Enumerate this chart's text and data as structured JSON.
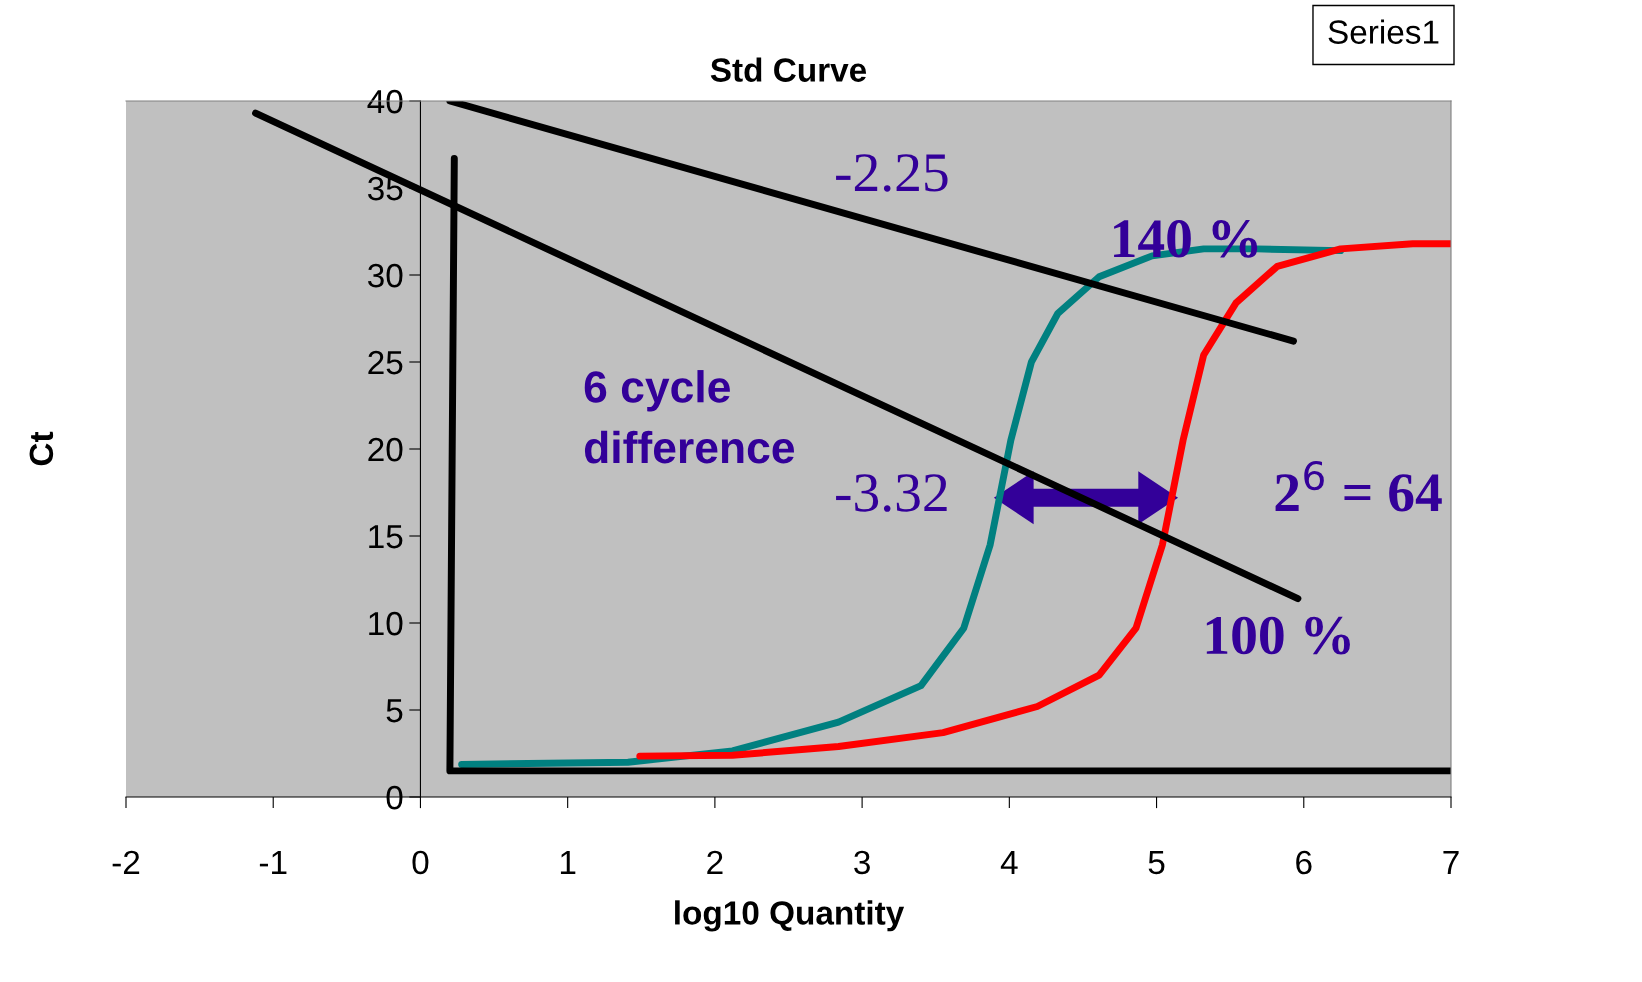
{
  "chart_data": {
    "type": "line",
    "title": "Std Curve",
    "xlabel": "log10 Quantity",
    "ylabel": "Ct",
    "xlim": [
      -2,
      7
    ],
    "ylim": [
      0,
      40
    ],
    "xticks": [
      -2,
      -1,
      0,
      1,
      2,
      3,
      4,
      5,
      6,
      7
    ],
    "yticks": [
      0,
      5,
      10,
      15,
      20,
      25,
      30,
      35,
      40
    ],
    "grid": false,
    "legend": false,
    "series": [
      {
        "color": "#008080",
        "x": [
          0.28,
          1.41,
          2.12,
          2.84,
          3.4,
          3.69,
          3.87,
          4.01,
          4.15,
          4.33,
          4.61,
          4.97,
          5.32,
          5.68,
          6.25
        ],
        "values": [
          1.87,
          2.0,
          2.65,
          4.3,
          6.4,
          9.7,
          14.5,
          20.5,
          25,
          27.8,
          29.9,
          31.1,
          31.5,
          31.5,
          31.4
        ]
      },
      {
        "color": "#ff0000",
        "x": [
          1.49,
          2.12,
          2.84,
          3.55,
          4.19,
          4.61,
          4.86,
          5.04,
          5.18,
          5.32,
          5.54,
          5.82,
          6.25,
          6.74,
          7.0
        ],
        "values": [
          2.35,
          2.4,
          2.9,
          3.7,
          5.2,
          7.0,
          9.7,
          14.5,
          20.5,
          25.4,
          28.4,
          30.5,
          31.5,
          31.8,
          31.8
        ]
      },
      {
        "color": "#000000",
        "x": [
          0.2,
          5.93
        ],
        "values": [
          40,
          26.2
        ]
      },
      {
        "color": "#000000",
        "x": [
          -1.12,
          5.96
        ],
        "values": [
          39.3,
          11.4
        ]
      },
      {
        "color": "#000000",
        "x": [
          0.23,
          0.2,
          7.0
        ],
        "values": [
          36.7,
          1.5,
          1.5
        ]
      }
    ],
    "annotations": [
      "-2.25",
      "140 %",
      "-3.32",
      "2$^{6}$ = 64",
      "100 %",
      "6 cycle\ndifference",
      "Series1"
    ]
  }
}
